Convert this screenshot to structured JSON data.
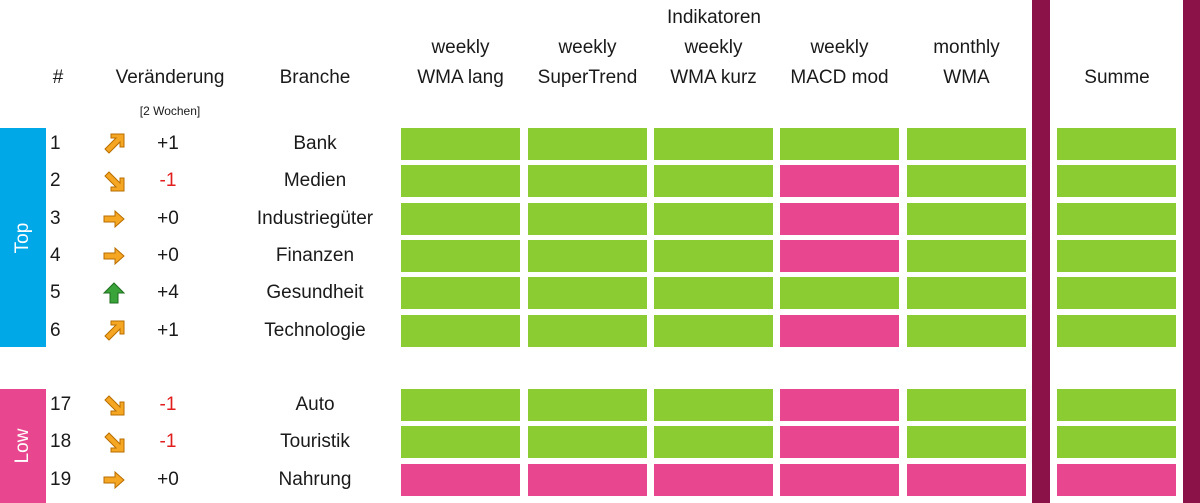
{
  "header": {
    "col_rank": "#",
    "col_change": "Veränderung",
    "col_change_sub": "[2 Wochen]",
    "col_branche": "Branche",
    "group_label": "Indikatoren",
    "indicators": [
      {
        "line1": "weekly",
        "line2": "WMA lang"
      },
      {
        "line1": "weekly",
        "line2": "SuperTrend"
      },
      {
        "line1": "weekly",
        "line2": "WMA kurz"
      },
      {
        "line1": "weekly",
        "line2": "MACD mod"
      },
      {
        "line1": "monthly",
        "line2": "WMA"
      }
    ],
    "col_sum": "Summe"
  },
  "groups": {
    "top": {
      "label": "Top",
      "color": "#00a8e8"
    },
    "low": {
      "label": "Low",
      "color": "#e8478f"
    }
  },
  "colors": {
    "positive": "#8ccc33",
    "negative": "#e8478f",
    "divider": "#8b1249",
    "arrow": "#f5a623",
    "arrow_up": "#3aa33a"
  },
  "rows": [
    {
      "rank": "1",
      "arrow": "arrow-up-right-icon",
      "change": "+1",
      "branche": "Bank",
      "signals": [
        "pos",
        "pos",
        "pos",
        "pos",
        "pos"
      ],
      "sum": "pos"
    },
    {
      "rank": "2",
      "arrow": "arrow-down-right-icon",
      "change": "-1",
      "branche": "Medien",
      "signals": [
        "pos",
        "pos",
        "pos",
        "neg",
        "pos"
      ],
      "sum": "pos"
    },
    {
      "rank": "3",
      "arrow": "arrow-right-icon",
      "change": "+0",
      "branche": "Industriegüter",
      "signals": [
        "pos",
        "pos",
        "pos",
        "neg",
        "pos"
      ],
      "sum": "pos"
    },
    {
      "rank": "4",
      "arrow": "arrow-right-icon",
      "change": "+0",
      "branche": "Finanzen",
      "signals": [
        "pos",
        "pos",
        "pos",
        "neg",
        "pos"
      ],
      "sum": "pos"
    },
    {
      "rank": "5",
      "arrow": "arrow-up-icon",
      "change": "+4",
      "branche": "Gesundheit",
      "signals": [
        "pos",
        "pos",
        "pos",
        "pos",
        "pos"
      ],
      "sum": "pos"
    },
    {
      "rank": "6",
      "arrow": "arrow-up-right-icon",
      "change": "+1",
      "branche": "Technologie",
      "signals": [
        "pos",
        "pos",
        "pos",
        "neg",
        "pos"
      ],
      "sum": "pos"
    },
    {
      "rank": "17",
      "arrow": "arrow-down-right-icon",
      "change": "-1",
      "branche": "Auto",
      "signals": [
        "pos",
        "pos",
        "pos",
        "neg",
        "pos"
      ],
      "sum": "pos"
    },
    {
      "rank": "18",
      "arrow": "arrow-down-right-icon",
      "change": "-1",
      "branche": "Touristik",
      "signals": [
        "pos",
        "pos",
        "pos",
        "neg",
        "pos"
      ],
      "sum": "pos"
    },
    {
      "rank": "19",
      "arrow": "arrow-right-icon",
      "change": "+0",
      "branche": "Nahrung",
      "signals": [
        "neg",
        "neg",
        "neg",
        "neg",
        "neg"
      ],
      "sum": "neg"
    }
  ]
}
